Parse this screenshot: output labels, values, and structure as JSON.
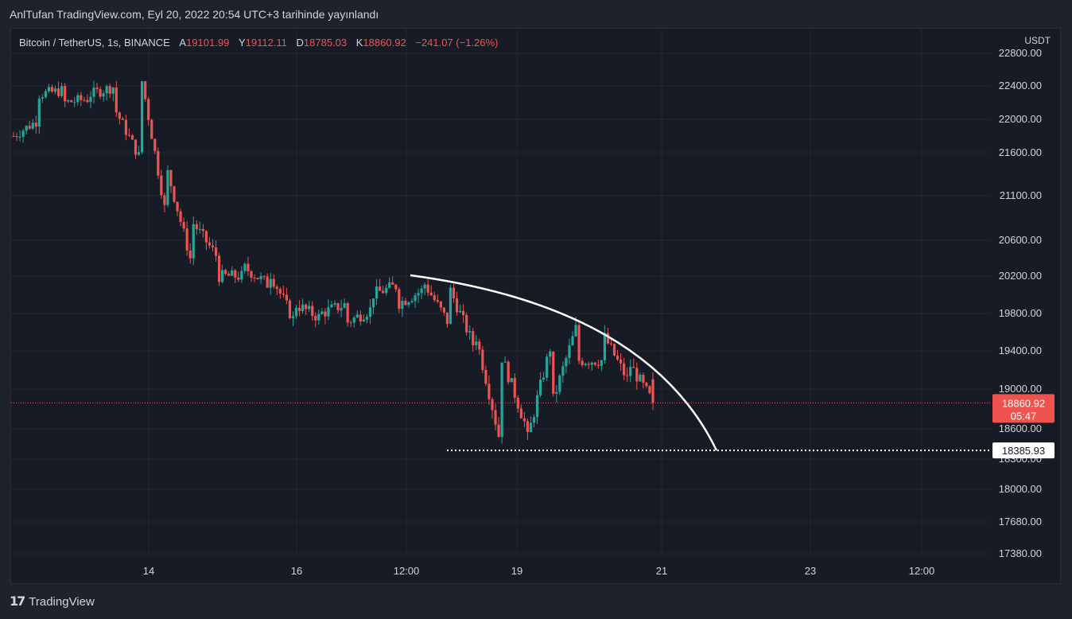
{
  "header": {
    "publish_line": "AnlTufan TradingView.com, Eyl 20, 2022 20:54 UTC+3 tarihinde yayınlandı"
  },
  "legend": {
    "symbol": "Bitcoin / TetherUS, 1s, BINANCE",
    "open_label": "A",
    "open": "19101.99",
    "high_label": "Y",
    "high": "19112.11",
    "low_label": "D",
    "low": "18785.03",
    "close_label": "K",
    "close": "18860.92",
    "change": "−241.07 (−1.26%)"
  },
  "currency": "USDT",
  "price_tag": {
    "price": "18860.92",
    "countdown": "05:47"
  },
  "support_tag": "18385.93",
  "footer": {
    "brand": "TradingView",
    "logo_icon": "tradingview-logo-icon"
  },
  "colors": {
    "up": "#26a69a",
    "down": "#ef5350",
    "background": "#171b26",
    "grid": "#232734",
    "text": "#d1d4dc"
  },
  "chart_data": {
    "type": "candlestick",
    "y_ticks": [
      "22800.00",
      "22400.00",
      "22000.00",
      "21600.00",
      "21100.00",
      "20600.00",
      "20200.00",
      "19800.00",
      "19400.00",
      "19000.00",
      "18600.00",
      "18300.00",
      "18000.00",
      "17680.00",
      "17380.00"
    ],
    "x_ticks": [
      "14",
      "16",
      "12:00",
      "19",
      "21",
      "23",
      "12:00"
    ],
    "ohlc_anchors": [
      [
        21800,
        22200
      ],
      [
        22300,
        22000
      ],
      [
        22200,
        22350
      ],
      [
        22300,
        22250
      ],
      [
        22100,
        22400
      ],
      [
        22500,
        21500
      ],
      [
        21400,
        20800
      ],
      [
        20800,
        20300
      ],
      [
        20200,
        20400
      ],
      [
        20300,
        20200
      ],
      [
        20250,
        20100
      ],
      [
        19900,
        19700
      ],
      [
        19800,
        19750
      ],
      [
        19700,
        19900
      ],
      [
        20000,
        19850
      ],
      [
        19900,
        20100
      ],
      [
        20150,
        20050
      ],
      [
        20100,
        19700
      ],
      [
        19650,
        19450
      ],
      [
        19400,
        18500
      ],
      [
        18400,
        18650
      ],
      [
        18800,
        19450
      ],
      [
        19300,
        19650
      ],
      [
        19600,
        19300
      ],
      [
        19300,
        19100
      ],
      [
        19100,
        18860.92
      ]
    ],
    "last_price": 18860.92,
    "support_level": 18385.93,
    "grid": true
  }
}
